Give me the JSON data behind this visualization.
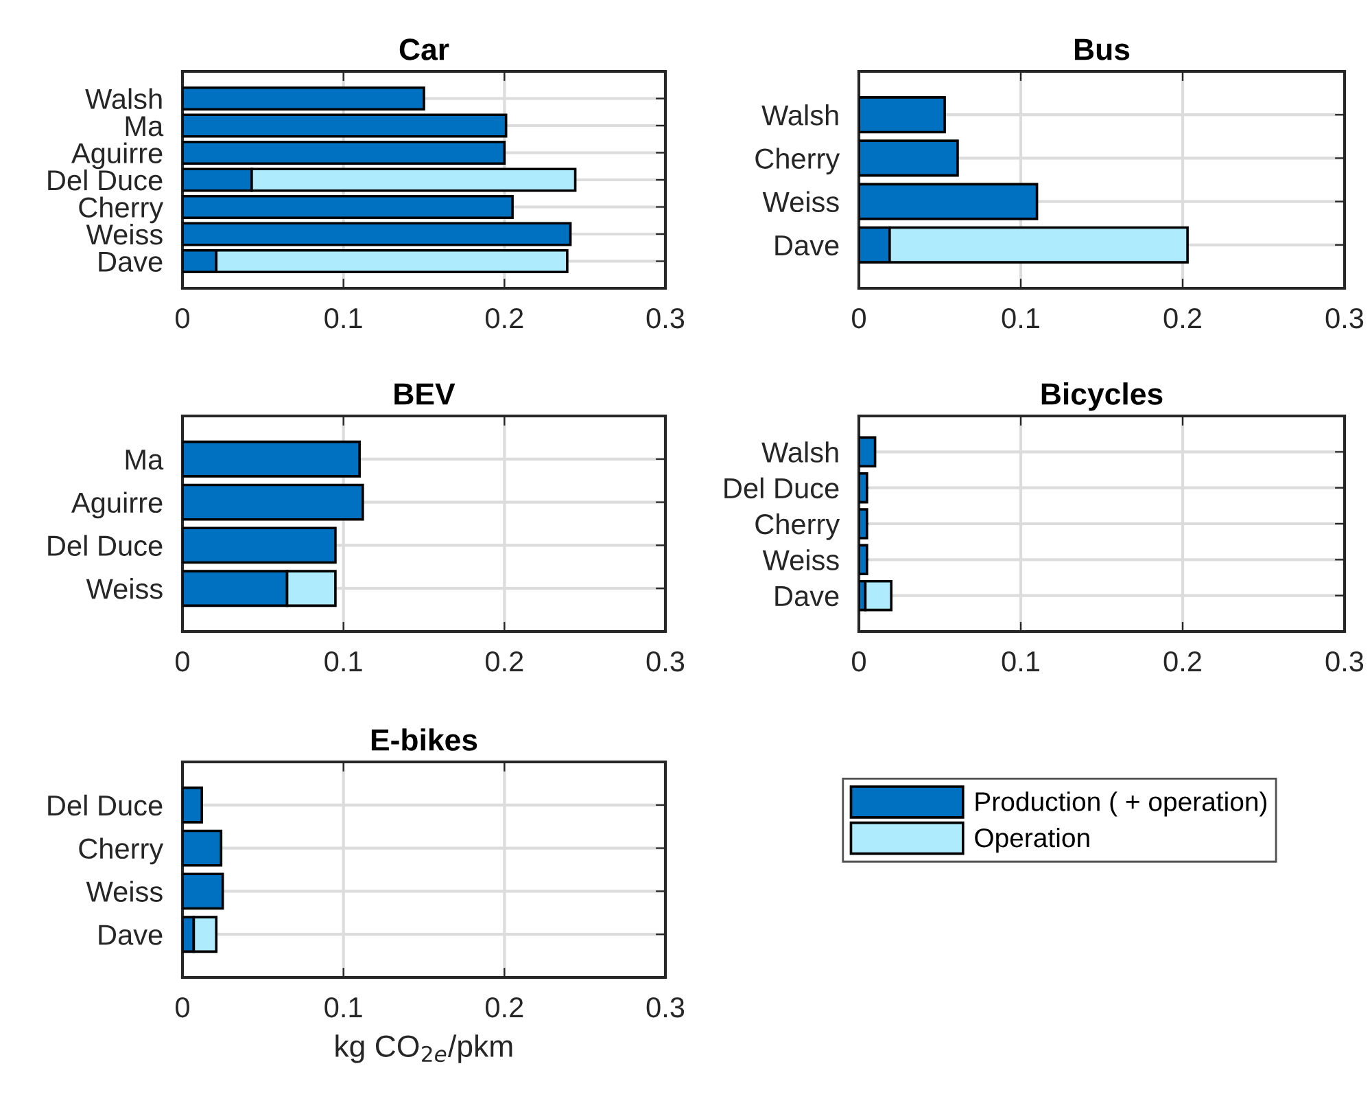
{
  "chart_data": [
    {
      "type": "bar",
      "title": "Car",
      "orientation": "horizontal",
      "stacked": true,
      "grid": true,
      "xlim": [
        0,
        0.3
      ],
      "xticks": [
        0,
        0.1,
        0.2,
        0.3
      ],
      "categories": [
        "Walsh",
        "Ma",
        "Aguirre",
        "Del Duce",
        "Cherry",
        "Weiss",
        "Dave"
      ],
      "series": [
        {
          "color": "#0070c0",
          "values": [
            0.15,
            0.201,
            0.2,
            0.043,
            0.205,
            0.241,
            0.021
          ]
        },
        {
          "color": "#aeebfc",
          "values": [
            null,
            null,
            null,
            0.201,
            null,
            null,
            0.218
          ]
        }
      ]
    },
    {
      "type": "bar",
      "title": "Bus",
      "orientation": "horizontal",
      "stacked": true,
      "grid": true,
      "xlim": [
        0,
        0.3
      ],
      "xticks": [
        0,
        0.1,
        0.2,
        0.3
      ],
      "categories": [
        "Walsh",
        "Cherry",
        "Weiss",
        "Dave"
      ],
      "series": [
        {
          "color": "#0070c0",
          "values": [
            0.053,
            0.061,
            0.11,
            0.019
          ]
        },
        {
          "color": "#aeebfc",
          "values": [
            null,
            null,
            null,
            0.184
          ]
        }
      ]
    },
    {
      "type": "bar",
      "title": "BEV",
      "orientation": "horizontal",
      "stacked": true,
      "grid": true,
      "xlim": [
        0,
        0.3
      ],
      "xticks": [
        0,
        0.1,
        0.2,
        0.3
      ],
      "categories": [
        "Ma",
        "Aguirre",
        "Del Duce",
        "Weiss"
      ],
      "series": [
        {
          "color": "#0070c0",
          "values": [
            0.11,
            0.112,
            0.095,
            0.065
          ]
        },
        {
          "color": "#aeebfc",
          "values": [
            null,
            null,
            null,
            0.03
          ]
        }
      ]
    },
    {
      "type": "bar",
      "title": "Bicycles",
      "orientation": "horizontal",
      "stacked": true,
      "grid": true,
      "xlim": [
        0,
        0.3
      ],
      "xticks": [
        0,
        0.1,
        0.2,
        0.3
      ],
      "categories": [
        "Walsh",
        "Del Duce",
        "Cherry",
        "Weiss",
        "Dave"
      ],
      "series": [
        {
          "color": "#0070c0",
          "values": [
            0.01,
            0.005,
            0.005,
            0.005,
            0.004
          ]
        },
        {
          "color": "#aeebfc",
          "values": [
            null,
            null,
            null,
            null,
            0.016
          ]
        }
      ]
    },
    {
      "type": "bar",
      "title": "E-bikes",
      "xlabel": "kg CO$_{2e}$/pkm",
      "orientation": "horizontal",
      "stacked": true,
      "grid": true,
      "legend": "right",
      "xlim": [
        0,
        0.3
      ],
      "xticks": [
        0,
        0.1,
        0.2,
        0.3
      ],
      "categories": [
        "Del Duce",
        "Cherry",
        "Weiss",
        "Dave"
      ],
      "series": [
        {
          "name": "Production ( + operation)",
          "color": "#0070c0",
          "values": [
            0.012,
            0.024,
            0.025,
            0.007
          ]
        },
        {
          "name": "Operation",
          "color": "#aeebfc",
          "values": [
            null,
            null,
            null,
            0.014
          ]
        }
      ]
    }
  ]
}
